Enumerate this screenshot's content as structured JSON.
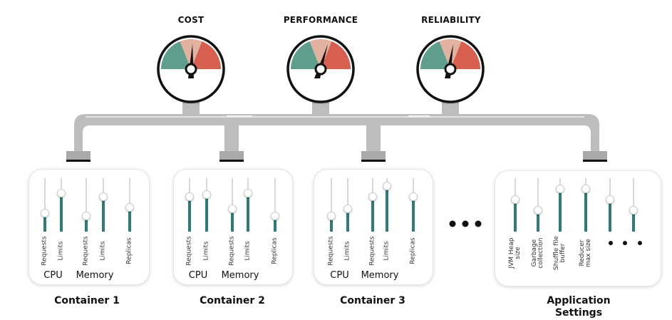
{
  "gauges": [
    {
      "title": "COST"
    },
    {
      "title": "PERFORMANCE"
    },
    {
      "title": "RELIABILITY"
    }
  ],
  "gauge_colors": {
    "green": "#5f9d8d",
    "peach": "#e0b29f",
    "red": "#d65f4f"
  },
  "slider_colors": {
    "track": "#d7d7d7",
    "fill": "#2f7b77"
  },
  "containers": [
    {
      "caption": "Container 1",
      "sliders": [
        {
          "label": "Requests",
          "level": 0.35
        },
        {
          "label": "Limits",
          "level": 0.72
        },
        {
          "label": "Requests",
          "level": 0.3
        },
        {
          "label": "Limits",
          "level": 0.65
        },
        {
          "label": "Replicas",
          "level": 0.45
        }
      ],
      "groups": [
        {
          "label": "CPU"
        },
        {
          "label": "Memory"
        }
      ]
    },
    {
      "caption": "Container 2",
      "sliders": [
        {
          "label": "Requests",
          "level": 0.65
        },
        {
          "label": "Limits",
          "level": 0.7
        },
        {
          "label": "Requests",
          "level": 0.43
        },
        {
          "label": "Limits",
          "level": 0.72
        },
        {
          "label": "Replicas",
          "level": 0.3
        }
      ],
      "groups": [
        {
          "label": "CPU"
        },
        {
          "label": "Memory"
        }
      ]
    },
    {
      "caption": "Container 3",
      "sliders": [
        {
          "label": "Requests",
          "level": 0.3
        },
        {
          "label": "Limits",
          "level": 0.43
        },
        {
          "label": "Requests",
          "level": 0.65
        },
        {
          "label": "Limits",
          "level": 0.85
        },
        {
          "label": "Replicas",
          "level": 0.65
        }
      ],
      "groups": [
        {
          "label": "CPU"
        },
        {
          "label": "Memory"
        }
      ]
    }
  ],
  "app_settings": {
    "caption_line1": "Application",
    "caption_line2": "Settings",
    "sliders": [
      {
        "label": "JVM Heap size",
        "level": 0.6
      },
      {
        "label": "Garbage collection",
        "level": 0.4
      },
      {
        "label": "Shuffle file buffer",
        "level": 0.8
      },
      {
        "label": "Reducer max size",
        "level": 0.8
      },
      {
        "label": "",
        "level": 0.6
      },
      {
        "label": "",
        "level": 0.4
      }
    ]
  }
}
